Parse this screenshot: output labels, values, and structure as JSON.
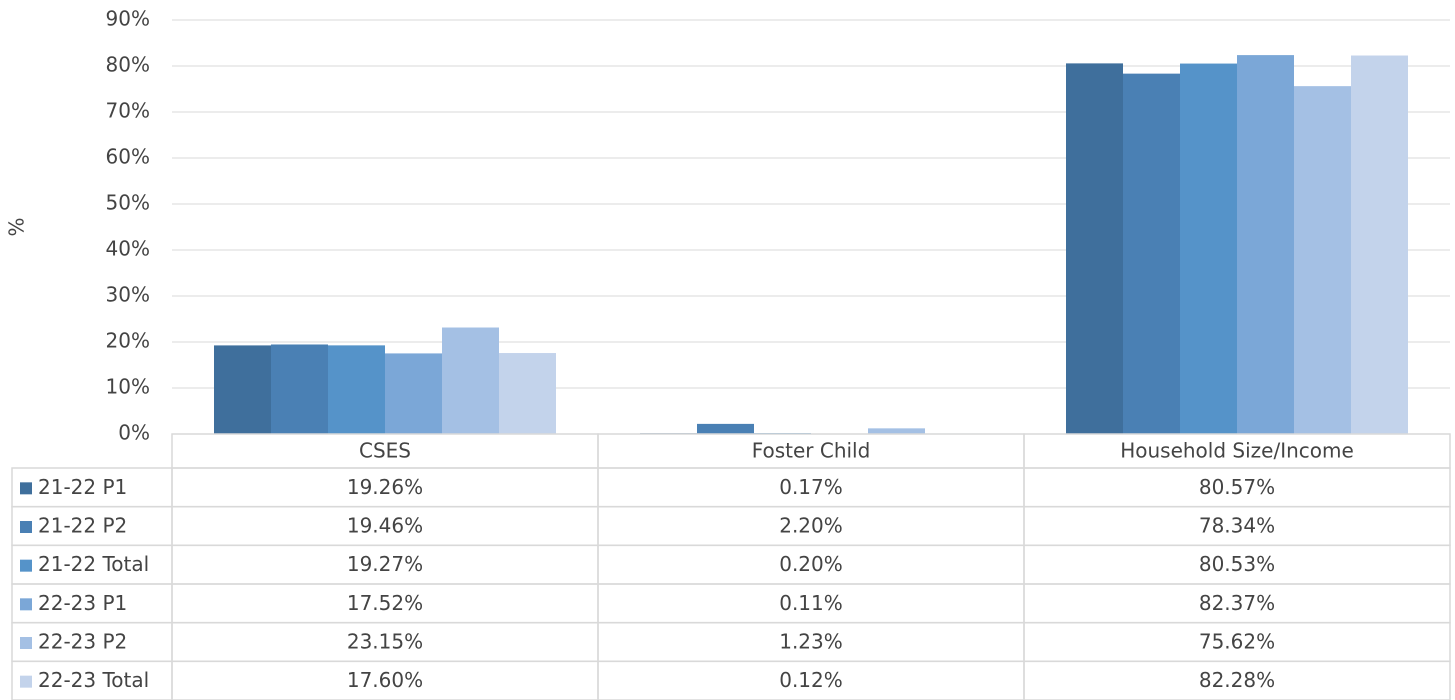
{
  "chart_data": {
    "type": "bar",
    "y_label": "%",
    "categories": [
      "CSES",
      "Foster Child",
      "Household Size/Income"
    ],
    "series": [
      {
        "name": "21-22 P1",
        "color": "#3f6f9c",
        "values": [
          19.26,
          0.17,
          80.57
        ],
        "value_labels": [
          "19.26%",
          "0.17%",
          "80.57%"
        ]
      },
      {
        "name": "21-22 P2",
        "color": "#4a80b4",
        "values": [
          19.46,
          2.2,
          78.34
        ],
        "value_labels": [
          "19.46%",
          "2.20%",
          "78.34%"
        ]
      },
      {
        "name": "21-22 Total",
        "color": "#5593c9",
        "values": [
          19.27,
          0.2,
          80.53
        ],
        "value_labels": [
          "19.27%",
          "0.20%",
          "80.53%"
        ]
      },
      {
        "name": "22-23 P1",
        "color": "#7ba7d7",
        "values": [
          17.52,
          0.11,
          82.37
        ],
        "value_labels": [
          "17.52%",
          "0.11%",
          "82.37%"
        ]
      },
      {
        "name": "22-23 P2",
        "color": "#a4c0e4",
        "values": [
          23.15,
          1.23,
          75.62
        ],
        "value_labels": [
          "23.15%",
          "1.23%",
          "75.62%"
        ]
      },
      {
        "name": "22-23 Total",
        "color": "#c3d3eb",
        "values": [
          17.6,
          0.12,
          82.28
        ],
        "value_labels": [
          "17.60%",
          "0.12%",
          "82.28%"
        ]
      }
    ],
    "ylim": [
      0,
      90
    ],
    "yticks": [
      {
        "value": 0,
        "label": "0%"
      },
      {
        "value": 10,
        "label": "10%"
      },
      {
        "value": 20,
        "label": "20%"
      },
      {
        "value": 30,
        "label": "30%"
      },
      {
        "value": 40,
        "label": "40%"
      },
      {
        "value": 50,
        "label": "50%"
      },
      {
        "value": 60,
        "label": "60%"
      },
      {
        "value": 70,
        "label": "70%"
      },
      {
        "value": 80,
        "label": "80%"
      },
      {
        "value": 90,
        "label": "90%"
      }
    ],
    "grid": true
  }
}
